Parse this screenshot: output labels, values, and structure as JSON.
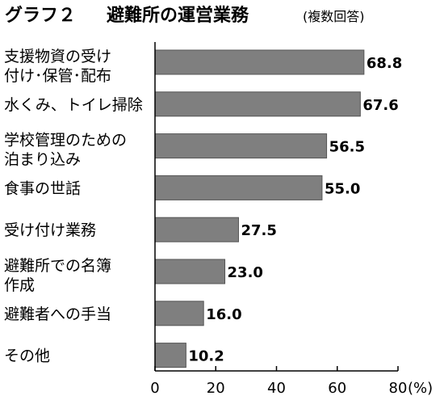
{
  "chart_data": {
    "type": "bar",
    "orientation": "horizontal",
    "title_prefix": "グラフ２",
    "title": "避難所の運営業務",
    "subtitle": "(複数回答)",
    "categories": [
      [
        "支援物資の受け",
        "付け･保管･配布"
      ],
      [
        "水くみ、トイレ掃除"
      ],
      [
        "学校管理のための",
        "泊まり込み"
      ],
      [
        "食事の世話"
      ],
      [
        "受け付け業務"
      ],
      [
        "避難所での名簿",
        "作成"
      ],
      [
        "避難者への手当"
      ],
      [
        "その他"
      ]
    ],
    "values": [
      68.8,
      67.6,
      56.5,
      55.0,
      27.5,
      23.0,
      16.0,
      10.2
    ],
    "value_labels": [
      "68.8",
      "67.6",
      "56.5",
      "55.0",
      "27.5",
      "23.0",
      "16.0",
      "10.2"
    ],
    "xlim": [
      0,
      80
    ],
    "xticks": [
      "0",
      "20",
      "40",
      "60",
      "80"
    ],
    "unit": "(%)",
    "bar_color": "#7f7f7f",
    "grid": false
  }
}
